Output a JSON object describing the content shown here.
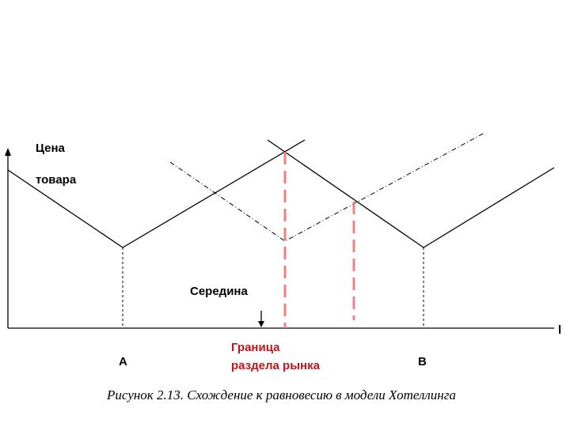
{
  "axis": {
    "y_label_line1": "Цена",
    "y_label_line2": "товара",
    "x_label": "l"
  },
  "points": {
    "a": "A",
    "b": "B"
  },
  "annotations": {
    "middle": "Середина",
    "boundary_line1": "Граница",
    "boundary_line2": "раздела рынка"
  },
  "caption": "Рисунок 2.13. Схождение к равновесию в модели Хотеллинга"
}
